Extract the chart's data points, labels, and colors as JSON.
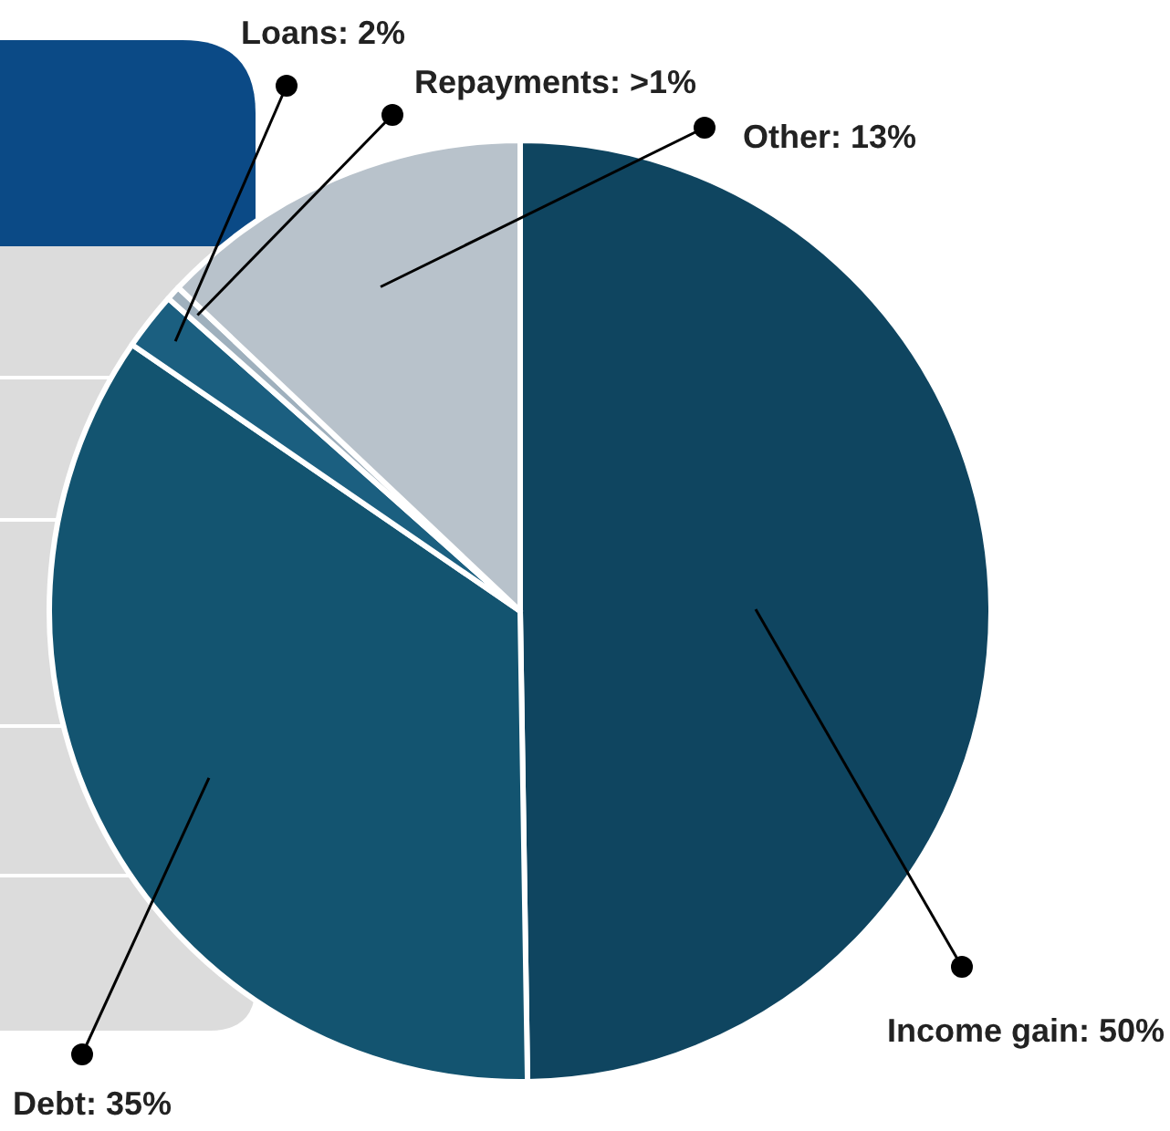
{
  "chart_data": {
    "type": "pie",
    "categories": [
      "Income gain",
      "Debt",
      "Loans",
      "Repayments",
      "Other"
    ],
    "values": [
      50,
      35,
      2,
      0.5,
      13
    ],
    "value_labels": [
      "50%",
      "35%",
      "2%",
      ">1%",
      "13%"
    ],
    "colors": [
      "#0f4560",
      "#135470",
      "#1b5f80",
      "#9fb0bd",
      "#b8c2cb"
    ],
    "legend": false
  }
}
